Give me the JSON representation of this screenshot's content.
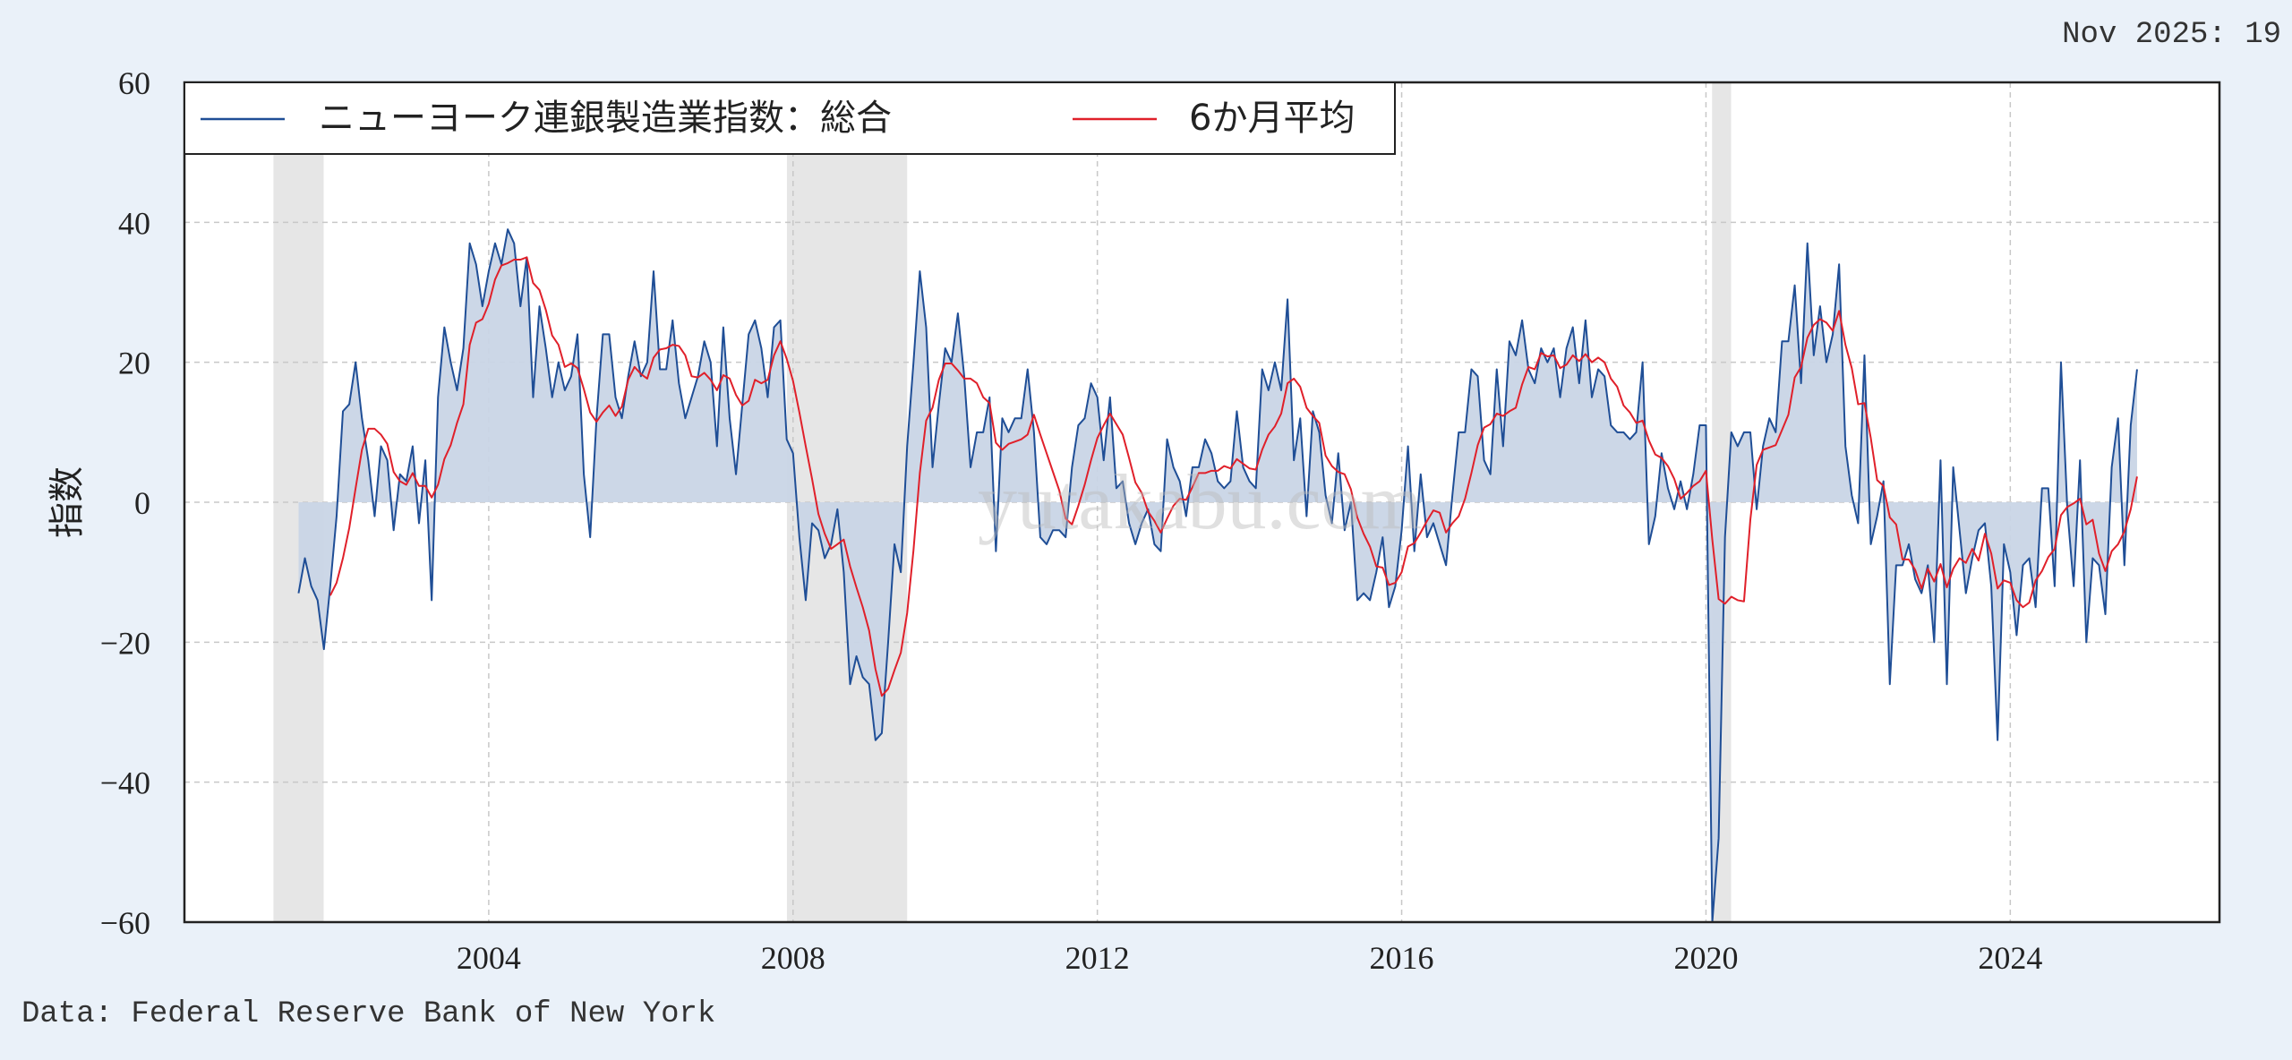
{
  "header": {
    "latest_label": "Nov 2025: 19"
  },
  "footer": {
    "source": "Data: Federal Reserve Bank of New York"
  },
  "watermark": "yutakabu.com",
  "chart_data": {
    "type": "line",
    "title": "",
    "ylabel": "指数",
    "xlabel": "",
    "ylim": [
      -60,
      60
    ],
    "yticks": [
      -60,
      -40,
      -20,
      0,
      20,
      40,
      60
    ],
    "xlim": [
      2000.0,
      2026.75
    ],
    "xticks": [
      2004,
      2008,
      2012,
      2016,
      2020,
      2024
    ],
    "grid": true,
    "legend_position": "top-left",
    "recessions": [
      [
        2001.17,
        2001.83
      ],
      [
        2007.92,
        2009.5
      ],
      [
        2020.08,
        2020.33
      ]
    ],
    "colors": {
      "index": "#1f4e96",
      "fill": "#c9d5e6",
      "ma": "#e0202a",
      "recession": "#e6e6e6"
    },
    "series": [
      {
        "name": "ニューヨーク連銀製造業指数：総合",
        "start": "2001-07",
        "frequency": "monthly",
        "values": [
          -13,
          -8,
          -12,
          -14,
          -21,
          -12,
          -2,
          13,
          14,
          20,
          12,
          6,
          -2,
          8,
          6,
          -4,
          4,
          3,
          8,
          -3,
          6,
          -14,
          15,
          25,
          20,
          16,
          22,
          37,
          34,
          28,
          33,
          37,
          34,
          39,
          37,
          28,
          35,
          15,
          28,
          22,
          15,
          20,
          16,
          18,
          24,
          4,
          -5,
          12,
          24,
          24,
          15,
          12,
          18,
          23,
          18,
          20,
          33,
          19,
          19,
          26,
          17,
          12,
          15,
          18,
          23,
          20,
          8,
          25,
          12,
          4,
          14,
          24,
          26,
          22,
          15,
          25,
          26,
          9,
          7,
          -5,
          -14,
          -3,
          -4,
          -8,
          -6,
          -1,
          -10,
          -26,
          -22,
          -25,
          -26,
          -34,
          -33,
          -20,
          -6,
          -10,
          8,
          20,
          33,
          25,
          5,
          14,
          22,
          20,
          27,
          18,
          5,
          10,
          10,
          15,
          -7,
          12,
          10,
          12,
          12,
          19,
          10,
          -5,
          -6,
          -4,
          -4,
          -5,
          5,
          11,
          12,
          17,
          15,
          6,
          15,
          2,
          3,
          -3,
          -6,
          -3,
          -1,
          -6,
          -7,
          9,
          5,
          3,
          -2,
          5,
          5,
          9,
          7,
          3,
          2,
          3,
          13,
          5,
          3,
          2,
          19,
          16,
          20,
          16,
          29,
          6,
          12,
          -2,
          13,
          10,
          1,
          -3,
          7,
          -4,
          0,
          -14,
          -13,
          -14,
          -10,
          -5,
          -15,
          -12,
          -4,
          8,
          -7,
          4,
          -5,
          -3,
          -6,
          -9,
          1,
          10,
          10,
          19,
          18,
          6,
          4,
          19,
          8,
          23,
          21,
          26,
          19,
          17,
          22,
          20,
          22,
          15,
          22,
          25,
          17,
          26,
          15,
          19,
          18,
          11,
          10,
          10,
          9,
          10,
          20,
          -6,
          -2,
          7,
          2,
          -1,
          3,
          -1,
          4,
          11,
          11,
          -60,
          -48,
          -5,
          10,
          8,
          10,
          10,
          -1,
          8,
          12,
          10,
          23,
          23,
          31,
          17,
          37,
          21,
          28,
          20,
          24,
          34,
          8,
          1,
          -3,
          21,
          -6,
          -2,
          3,
          -26,
          -9,
          -9,
          -6,
          -11,
          -13,
          -9,
          -20,
          6,
          -26,
          5,
          -4,
          -13,
          -8,
          -4,
          -3,
          -12,
          -34,
          -6,
          -10,
          -19,
          -9,
          -8,
          -15,
          2,
          2,
          -12,
          20,
          -1,
          -12,
          6,
          -20,
          -8,
          -9,
          -16,
          5,
          12,
          -9,
          11,
          19
        ]
      },
      {
        "name": "6か月平均",
        "window": 6
      }
    ]
  }
}
